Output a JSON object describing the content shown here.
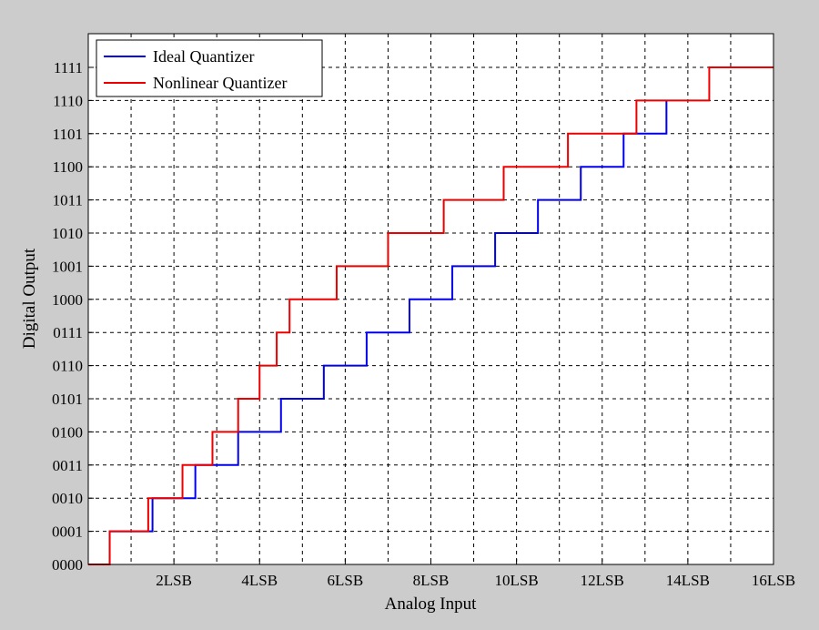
{
  "chart_data": {
    "type": "line",
    "step": true,
    "xlabel": "Analog Input",
    "ylabel": "Digital Output",
    "xlim": [
      0,
      16
    ],
    "ylim": [
      0,
      15
    ],
    "grid": true,
    "legend_position": "top-left",
    "x_ticks": [
      {
        "value": 2,
        "label": "2LSB"
      },
      {
        "value": 4,
        "label": "4LSB"
      },
      {
        "value": 6,
        "label": "6LSB"
      },
      {
        "value": 8,
        "label": "8LSB"
      },
      {
        "value": 10,
        "label": "10LSB"
      },
      {
        "value": 12,
        "label": "12LSB"
      },
      {
        "value": 14,
        "label": "14LSB"
      },
      {
        "value": 16,
        "label": "16LSB"
      }
    ],
    "x_grid": [
      1,
      2,
      3,
      4,
      5,
      6,
      7,
      8,
      9,
      10,
      11,
      12,
      13,
      14,
      15
    ],
    "y_ticks": [
      {
        "value": 0,
        "label": "0000"
      },
      {
        "value": 1,
        "label": "0001"
      },
      {
        "value": 2,
        "label": "0010"
      },
      {
        "value": 3,
        "label": "0011"
      },
      {
        "value": 4,
        "label": "0100"
      },
      {
        "value": 5,
        "label": "0101"
      },
      {
        "value": 6,
        "label": "0110"
      },
      {
        "value": 7,
        "label": "0111"
      },
      {
        "value": 8,
        "label": "1000"
      },
      {
        "value": 9,
        "label": "1001"
      },
      {
        "value": 10,
        "label": "1010"
      },
      {
        "value": 11,
        "label": "1011"
      },
      {
        "value": 12,
        "label": "1100"
      },
      {
        "value": 13,
        "label": "1101"
      },
      {
        "value": 14,
        "label": "1110"
      },
      {
        "value": 15,
        "label": "1111"
      }
    ],
    "series": [
      {
        "name": "Ideal Quantizer",
        "color": "#0000ee",
        "transitions": [
          0.5,
          1.5,
          2.5,
          3.5,
          4.5,
          5.5,
          6.5,
          7.5,
          8.5,
          9.5,
          10.5,
          11.5,
          12.5,
          13.5
        ],
        "x_end": 13.5
      },
      {
        "name": "Nonlinear Quantizer",
        "color": "#ee0000",
        "transitions": [
          0.5,
          1.4,
          2.2,
          2.9,
          3.5,
          4.0,
          4.4,
          4.7,
          5.8,
          7.0,
          8.3,
          9.7,
          11.2,
          12.8,
          14.5
        ],
        "x_end": 16
      }
    ]
  }
}
